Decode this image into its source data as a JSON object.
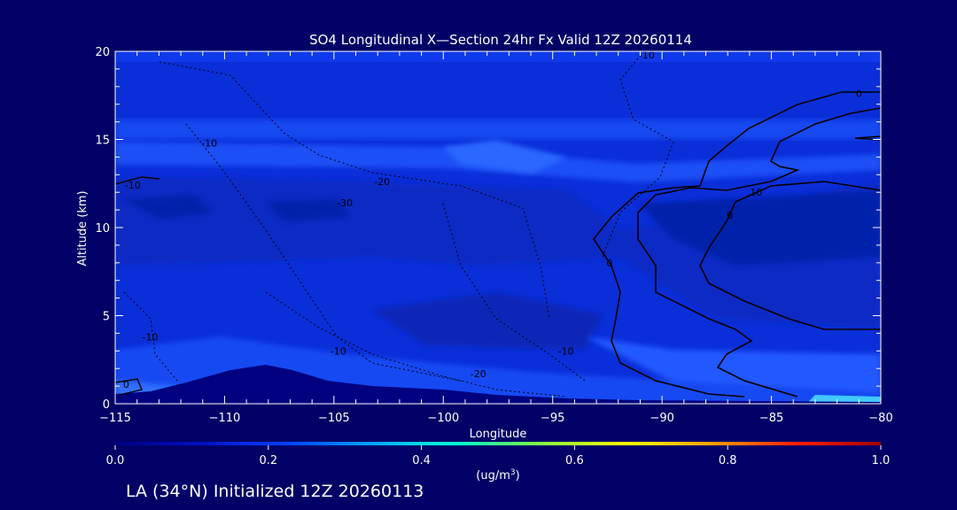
{
  "chart_data": {
    "type": "contour",
    "title": "SO4 Longitudinal X—Section 24hr  Fx Valid 12Z 20260114",
    "xlabel": "Longitude",
    "ylabel": "Altitude (km)",
    "xlim": [
      -115,
      -80
    ],
    "ylim": [
      0,
      20
    ],
    "x_ticks": [
      "−115",
      "−110",
      "−105",
      "−100",
      "−95",
      "−90",
      "−85",
      "−80"
    ],
    "x_tick_values": [
      -115,
      -110,
      -105,
      -100,
      -95,
      -90,
      -85,
      -80
    ],
    "y_ticks": [
      "0",
      "5",
      "10",
      "15",
      "20"
    ],
    "y_tick_values": [
      0,
      5,
      10,
      15,
      20
    ],
    "colorbar": {
      "label_main": "(ug/m",
      "label_sup": "3",
      "label_end": ")",
      "ticks": [
        "0.0",
        "0.2",
        "0.4",
        "0.6",
        "0.8",
        "1.0"
      ],
      "tick_values": [
        0.0,
        0.2,
        0.4,
        0.6,
        0.8,
        1.0
      ],
      "range": [
        0.0,
        1.0
      ],
      "colors": [
        "#000080",
        "#0010c0",
        "#0040ff",
        "#00a0ff",
        "#00ffd0",
        "#80ff40",
        "#ffff00",
        "#ffa000",
        "#ff2000",
        "#a00000"
      ]
    },
    "contour_labels": [
      {
        "text": "-10",
        "lon": -90.7,
        "alt": 19.6
      },
      {
        "text": "0",
        "lon": -81.0,
        "alt": 17.4
      },
      {
        "text": "-10",
        "lon": -110.7,
        "alt": 14.6
      },
      {
        "text": "-20",
        "lon": -102.8,
        "alt": 12.4
      },
      {
        "text": "10",
        "lon": -85.7,
        "alt": 11.8
      },
      {
        "text": "-10",
        "lon": -114.2,
        "alt": 12.2
      },
      {
        "text": "-30",
        "lon": -104.5,
        "alt": 11.2
      },
      {
        "text": "0",
        "lon": -86.9,
        "alt": 10.5
      },
      {
        "text": "-10",
        "lon": -113.4,
        "alt": 3.6
      },
      {
        "text": "-10",
        "lon": -104.8,
        "alt": 2.8
      },
      {
        "text": "-10",
        "lon": -94.4,
        "alt": 2.8
      },
      {
        "text": "-20",
        "lon": -98.4,
        "alt": 1.5
      },
      {
        "text": "0",
        "lon": -114.5,
        "alt": 0.9
      },
      {
        "text": "0",
        "lon": -92.4,
        "alt": 7.8
      }
    ],
    "grid": false,
    "legend": "none"
  },
  "footer": "LA (34°N) Initialized 12Z 20260113",
  "colors": {
    "background": "#000066",
    "plot_base": "#0a2ed8"
  }
}
